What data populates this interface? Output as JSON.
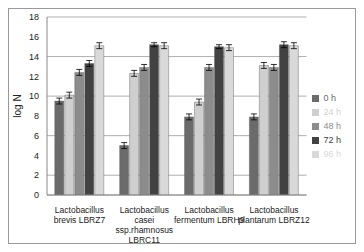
{
  "chart_data": {
    "type": "bar",
    "y_label": "log N",
    "categories": [
      "Lactobacillus brevis LBRZ7",
      "Lactobacillus casei ssp.rhamnosus LBRC11",
      "Lactobacillus fermentum LBRH9",
      "Lactobacillus plantarum LBRZ12"
    ],
    "series": [
      {
        "name": "0 h",
        "color": "#6b6b6b",
        "values": [
          9.5,
          5.0,
          7.9,
          7.9
        ],
        "errors": [
          0.3,
          0.3,
          0.3,
          0.3
        ]
      },
      {
        "name": "24 h",
        "color": "#cfcfcf",
        "values": [
          10.1,
          12.3,
          9.4,
          13.1
        ],
        "errors": [
          0.3,
          0.3,
          0.3,
          0.3
        ]
      },
      {
        "name": "48 h",
        "color": "#8c8c8c",
        "values": [
          12.4,
          12.9,
          12.9,
          12.9
        ],
        "errors": [
          0.3,
          0.3,
          0.3,
          0.3
        ]
      },
      {
        "name": "72 h",
        "color": "#424242",
        "values": [
          13.3,
          15.2,
          15.0,
          15.2
        ],
        "errors": [
          0.3,
          0.2,
          0.2,
          0.3
        ]
      },
      {
        "name": "96 h",
        "color": "#d9d9d9",
        "values": [
          15.1,
          15.1,
          14.9,
          15.1
        ],
        "errors": [
          0.3,
          0.3,
          0.3,
          0.3
        ]
      }
    ],
    "ylim": [
      0,
      18
    ],
    "yticks": [
      0,
      2,
      4,
      6,
      8,
      10,
      12,
      14,
      16,
      18
    ],
    "grid": true,
    "legend": "right"
  }
}
